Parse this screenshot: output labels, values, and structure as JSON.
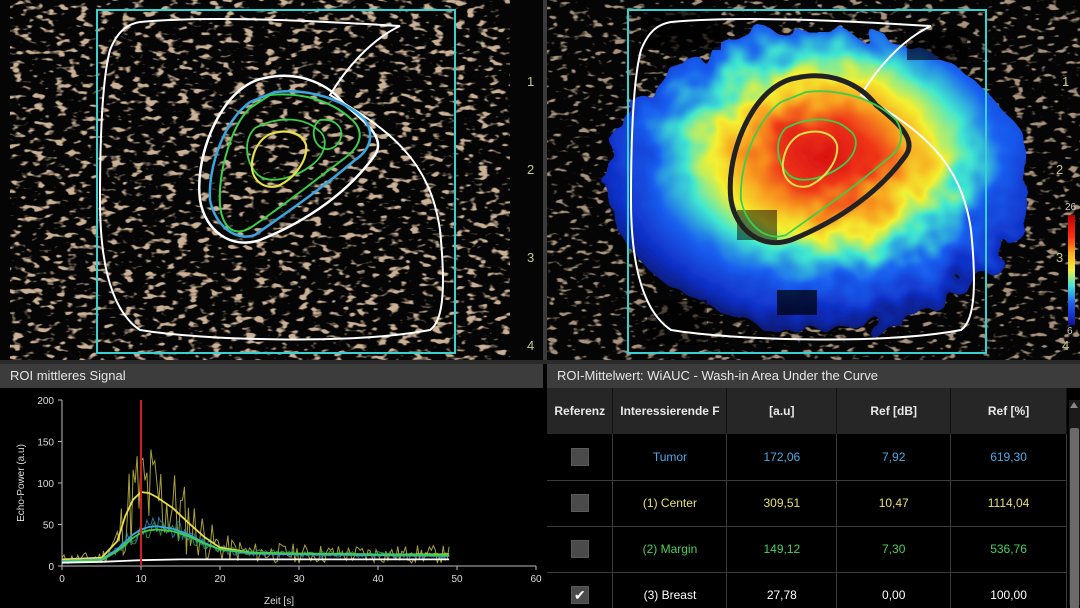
{
  "viewports": {
    "depth_markers": [
      "1",
      "2",
      "3",
      "4"
    ],
    "colorbar": {
      "max": "26",
      "min": "6"
    }
  },
  "chart_panel": {
    "title": "ROI mittleres Signal"
  },
  "table_panel": {
    "title": "ROI-Mittelwert: WiAUC - Wash-in Area Under the Curve"
  },
  "colors": {
    "tumor": "#3aa6e0",
    "center": "#e8e04a",
    "margin": "#3ccf4a",
    "breast": "#ffffff",
    "roi_box": "#38d0d0",
    "marker": "#d01e1e"
  },
  "table": {
    "headers": [
      "Referenz",
      "Interessierende F",
      "[a.u]",
      "Ref [dB]",
      "Ref [%]"
    ],
    "rows": [
      {
        "checked": false,
        "name": "Tumor",
        "au": "172,06",
        "ref_db": "7,92",
        "ref_pct": "619,30",
        "color": "#4da8e8"
      },
      {
        "checked": false,
        "name": "(1) Center",
        "au": "309,51",
        "ref_db": "10,47",
        "ref_pct": "1114,04",
        "color": "#e8e06a"
      },
      {
        "checked": false,
        "name": "(2) Margin",
        "au": "149,12",
        "ref_db": "7,30",
        "ref_pct": "536,76",
        "color": "#4ccf5a"
      },
      {
        "checked": true,
        "name": "(3) Breast",
        "au": "27,78",
        "ref_db": "0,00",
        "ref_pct": "100,00",
        "color": "#ffffff"
      }
    ]
  },
  "chart_data": {
    "type": "line",
    "title": "",
    "xlabel": "Zeit [s]",
    "ylabel": "Echo-Power (a.u)",
    "xlim": [
      0,
      60
    ],
    "ylim": [
      0,
      200
    ],
    "xticks": [
      0,
      10,
      20,
      30,
      40,
      50,
      60
    ],
    "yticks": [
      0,
      50,
      100,
      150,
      200
    ],
    "marker_x": 10,
    "series": [
      {
        "name": "(1) Center",
        "color": "#e8e04a",
        "x": [
          0,
          5,
          7,
          8,
          9,
          10,
          11,
          12,
          14,
          16,
          18,
          20,
          24,
          30,
          40,
          49
        ],
        "y": [
          8,
          10,
          30,
          60,
          80,
          89,
          88,
          83,
          70,
          52,
          35,
          22,
          16,
          15,
          14,
          14
        ]
      },
      {
        "name": "Tumor",
        "color": "#3aa6e0",
        "x": [
          0,
          5,
          7,
          9,
          10,
          11,
          12,
          14,
          16,
          18,
          20,
          24,
          30,
          40,
          49
        ],
        "y": [
          6,
          8,
          20,
          38,
          44,
          47,
          48,
          45,
          38,
          28,
          20,
          15,
          14,
          13,
          12
        ]
      },
      {
        "name": "(2) Margin",
        "color": "#3ccf4a",
        "x": [
          0,
          5,
          7,
          9,
          10,
          11,
          12,
          14,
          16,
          18,
          20,
          24,
          30,
          40,
          49
        ],
        "y": [
          5,
          7,
          18,
          34,
          40,
          43,
          44,
          42,
          36,
          27,
          20,
          16,
          15,
          14,
          13
        ]
      },
      {
        "name": "(3) Breast",
        "color": "#ffffff",
        "x": [
          0,
          5,
          10,
          15,
          20,
          30,
          40,
          49
        ],
        "y": [
          4,
          5,
          7,
          8,
          8,
          8,
          8,
          8
        ]
      }
    ]
  }
}
